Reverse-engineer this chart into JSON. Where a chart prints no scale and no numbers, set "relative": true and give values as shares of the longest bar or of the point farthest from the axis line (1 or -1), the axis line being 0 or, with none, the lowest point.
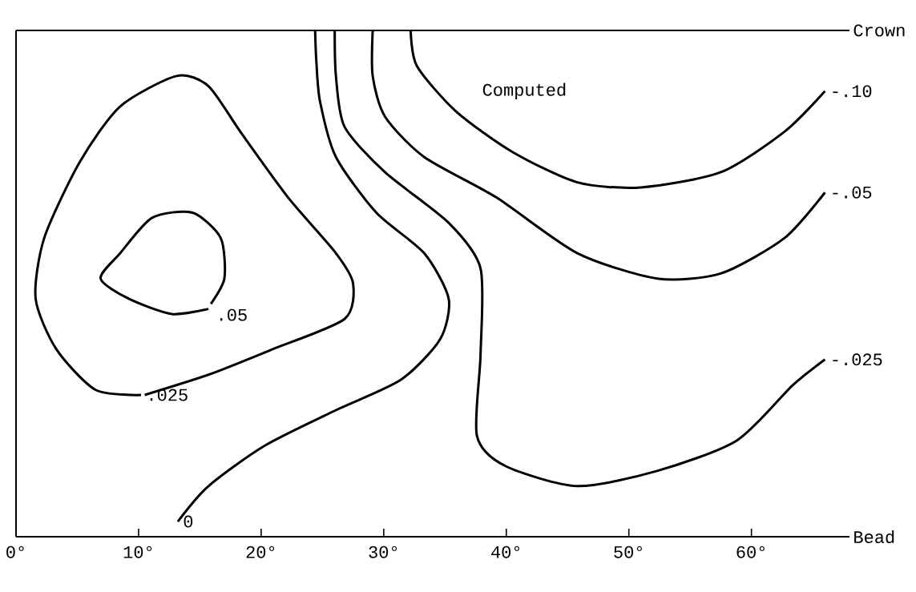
{
  "chart_data": {
    "type": "line",
    "relative": true,
    "xlim": [
      0,
      68
    ],
    "xticks": [
      {
        "value": 0,
        "label": "0°"
      },
      {
        "value": 10,
        "label": "10°"
      },
      {
        "value": 20,
        "label": "20°"
      },
      {
        "value": 30,
        "label": "30°"
      },
      {
        "value": 40,
        "label": "40°"
      },
      {
        "value": 50,
        "label": "50°"
      },
      {
        "value": 60,
        "label": "60°"
      }
    ],
    "series": [
      {
        "name": ".05",
        "color": "#000000",
        "x": [
          15.7,
          12.7,
          9.2,
          6.9,
          8.5,
          11.1,
          14.4,
          16.7,
          17.0,
          15.9
        ],
        "values": [
          0.45,
          0.44,
          0.47,
          0.51,
          0.56,
          0.63,
          0.64,
          0.59,
          0.51,
          0.46
        ]
      },
      {
        "name": ".025",
        "color": "#000000",
        "x": [
          10.5,
          15.7,
          20.9,
          26.8,
          27.5,
          26.1,
          22.2,
          18.3,
          15.7,
          13.1,
          8.5,
          5.2,
          2.3,
          1.6,
          3.3,
          6.5,
          10.2
        ],
        "values": [
          0.28,
          0.32,
          0.37,
          0.43,
          0.5,
          0.56,
          0.67,
          0.8,
          0.89,
          0.91,
          0.85,
          0.74,
          0.59,
          0.47,
          0.37,
          0.29,
          0.28
        ]
      },
      {
        "name": "0",
        "color": "#000000",
        "x": [
          24.4,
          24.5,
          24.8,
          26.1,
          29.4,
          33.3,
          35.3,
          34.6,
          31.4,
          26.1,
          20.3,
          15.7,
          13.2
        ],
        "values": [
          1.0,
          0.94,
          0.86,
          0.75,
          0.64,
          0.56,
          0.47,
          0.39,
          0.31,
          0.25,
          0.18,
          0.1,
          0.03
        ]
      },
      {
        "name": "-.025",
        "color": "#000000",
        "x": [
          26.0,
          26.1,
          26.8,
          30.1,
          35.3,
          37.9,
          37.9,
          37.6,
          39.9,
          45.8,
          52.3,
          58.8,
          63.4,
          66.0
        ],
        "values": [
          1.0,
          0.91,
          0.81,
          0.72,
          0.62,
          0.53,
          0.36,
          0.2,
          0.14,
          0.1,
          0.13,
          0.19,
          0.3,
          0.35
        ]
      },
      {
        "name": "-.05",
        "color": "#000000",
        "x": [
          29.1,
          29.1,
          30.1,
          33.3,
          39.2,
          45.8,
          52.3,
          57.5,
          62.7,
          66.0
        ],
        "values": [
          1.0,
          0.91,
          0.83,
          0.75,
          0.67,
          0.56,
          0.51,
          0.52,
          0.59,
          0.68
        ]
      },
      {
        "name": "-.10",
        "color": "#000000",
        "x": [
          32.2,
          32.7,
          35.9,
          40.5,
          45.8,
          51.0,
          57.5,
          62.7,
          66.0
        ],
        "values": [
          1.0,
          0.93,
          0.84,
          0.76,
          0.7,
          0.69,
          0.72,
          0.8,
          0.88
        ]
      }
    ],
    "annotations": [
      "Computed",
      "Crown",
      "Bead"
    ]
  }
}
